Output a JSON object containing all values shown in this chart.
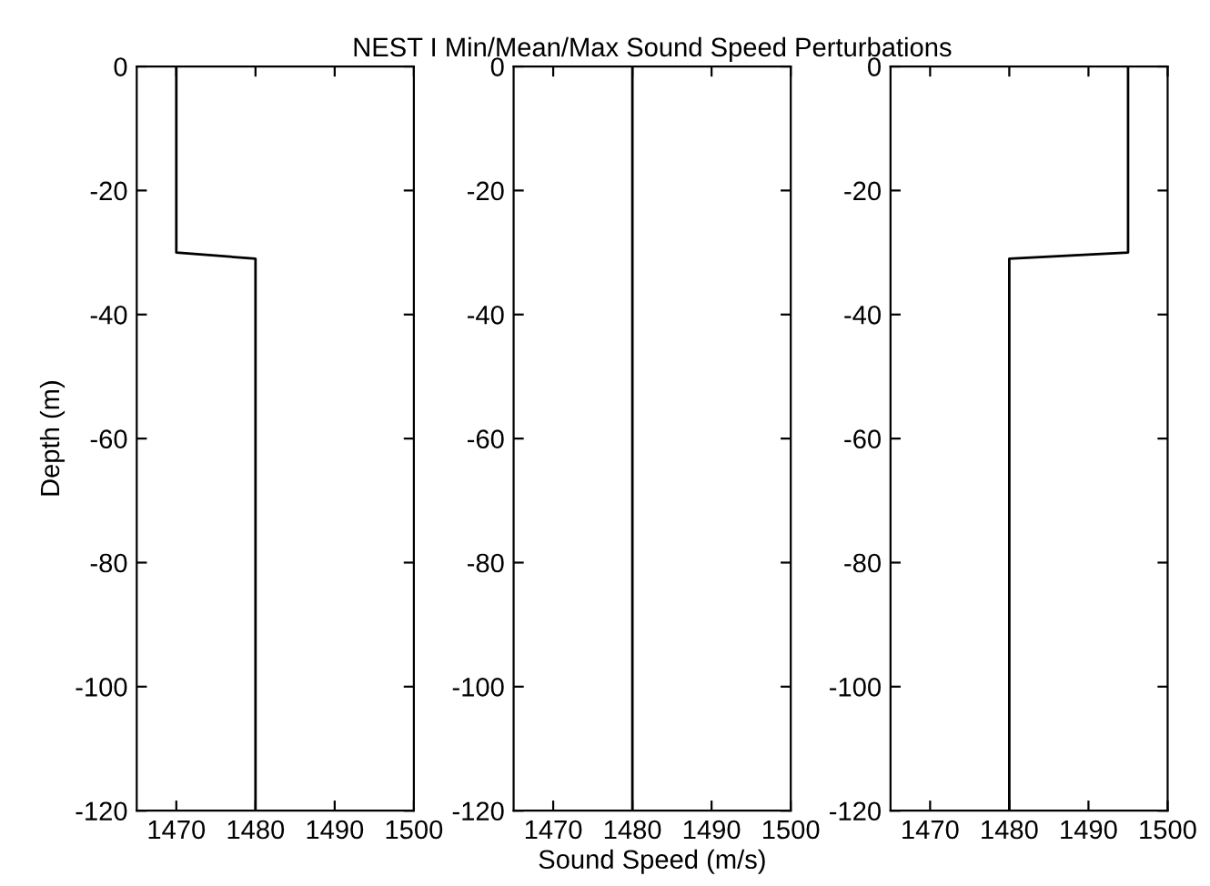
{
  "chart_data": [
    {
      "type": "line",
      "ylabel": "Depth (m)",
      "xlim": [
        1465,
        1500
      ],
      "ylim": [
        -120,
        0
      ],
      "xticks": [
        1470,
        1480,
        1490,
        1500
      ],
      "yticks": [
        0,
        -20,
        -40,
        -60,
        -80,
        -100,
        -120
      ],
      "series": [
        {
          "color": "#000000",
          "x": [
            1470,
            1470,
            1480,
            1480
          ],
          "values": [
            0,
            -30,
            -31,
            -120
          ]
        }
      ]
    },
    {
      "type": "line",
      "title": "NEST I Min/Mean/Max Sound Speed Perturbations",
      "xlabel": "Sound Speed (m/s)",
      "xlim": [
        1465,
        1500
      ],
      "ylim": [
        -120,
        0
      ],
      "xticks": [
        1470,
        1480,
        1490,
        1500
      ],
      "yticks": [
        0,
        -20,
        -40,
        -60,
        -80,
        -100,
        -120
      ],
      "series": [
        {
          "color": "#000000",
          "x": [
            1480,
            1480,
            1480,
            1480
          ],
          "values": [
            0,
            -30,
            -31,
            -120
          ]
        }
      ]
    },
    {
      "type": "line",
      "xlim": [
        1465,
        1500
      ],
      "ylim": [
        -120,
        0
      ],
      "xticks": [
        1470,
        1480,
        1490,
        1500
      ],
      "yticks": [
        0,
        -20,
        -40,
        -60,
        -80,
        -100,
        -120
      ],
      "series": [
        {
          "color": "#000000",
          "x": [
            1495,
            1495,
            1480,
            1480
          ],
          "values": [
            0,
            -30,
            -31,
            -120
          ]
        }
      ]
    }
  ]
}
